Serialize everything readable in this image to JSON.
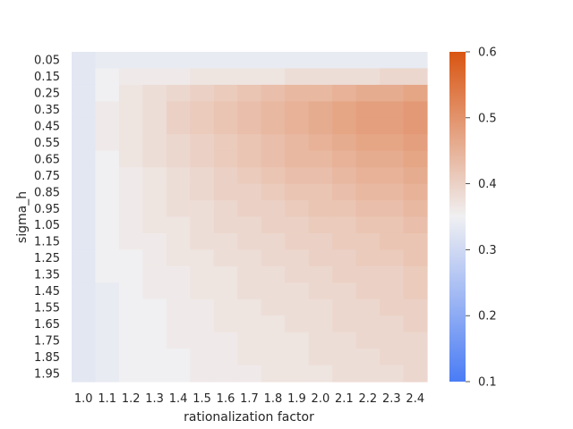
{
  "chart_data": {
    "type": "heatmap",
    "xlabel": "rationalization factor",
    "ylabel": "sigma_h",
    "x": [
      "1.0",
      "1.1",
      "1.2",
      "1.3",
      "1.4",
      "1.5",
      "1.6",
      "1.7",
      "1.8",
      "1.9",
      "2.0",
      "2.1",
      "2.2",
      "2.3",
      "2.4"
    ],
    "y": [
      "0.05",
      "0.15",
      "0.25",
      "0.35",
      "0.45",
      "0.55",
      "0.65",
      "0.75",
      "0.85",
      "0.95",
      "1.05",
      "1.15",
      "1.25",
      "1.35",
      "1.45",
      "1.55",
      "1.65",
      "1.75",
      "1.85",
      "1.95"
    ],
    "colorbar": {
      "min": 0.1,
      "max": 0.6,
      "ticks": [
        "0.1",
        "0.2",
        "0.3",
        "0.4",
        "0.5",
        "0.6"
      ]
    },
    "colors": {
      "low": "#4a7cf5",
      "mid": "#f0f0f2",
      "high": "#d95512"
    },
    "values": [
      [
        0.33,
        0.34,
        0.34,
        0.34,
        0.34,
        0.34,
        0.34,
        0.34,
        0.34,
        0.34,
        0.34,
        0.34,
        0.34,
        0.34,
        0.34
      ],
      [
        0.33,
        0.35,
        0.36,
        0.36,
        0.36,
        0.37,
        0.37,
        0.37,
        0.37,
        0.38,
        0.38,
        0.38,
        0.38,
        0.39,
        0.39
      ],
      [
        0.33,
        0.35,
        0.37,
        0.38,
        0.39,
        0.4,
        0.41,
        0.42,
        0.43,
        0.44,
        0.44,
        0.45,
        0.46,
        0.46,
        0.47
      ],
      [
        0.33,
        0.36,
        0.37,
        0.38,
        0.4,
        0.41,
        0.42,
        0.43,
        0.44,
        0.45,
        0.46,
        0.47,
        0.48,
        0.48,
        0.49
      ],
      [
        0.33,
        0.36,
        0.37,
        0.38,
        0.4,
        0.41,
        0.42,
        0.43,
        0.44,
        0.45,
        0.46,
        0.47,
        0.48,
        0.48,
        0.49
      ],
      [
        0.33,
        0.36,
        0.37,
        0.38,
        0.39,
        0.4,
        0.41,
        0.42,
        0.43,
        0.44,
        0.45,
        0.46,
        0.47,
        0.47,
        0.48
      ],
      [
        0.33,
        0.35,
        0.37,
        0.38,
        0.39,
        0.4,
        0.41,
        0.42,
        0.43,
        0.44,
        0.44,
        0.45,
        0.46,
        0.46,
        0.47
      ],
      [
        0.33,
        0.35,
        0.36,
        0.37,
        0.38,
        0.39,
        0.4,
        0.41,
        0.42,
        0.43,
        0.43,
        0.44,
        0.45,
        0.45,
        0.46
      ],
      [
        0.33,
        0.35,
        0.36,
        0.37,
        0.38,
        0.39,
        0.4,
        0.4,
        0.41,
        0.42,
        0.42,
        0.43,
        0.44,
        0.44,
        0.45
      ],
      [
        0.33,
        0.35,
        0.36,
        0.37,
        0.38,
        0.38,
        0.39,
        0.4,
        0.4,
        0.41,
        0.42,
        0.42,
        0.43,
        0.43,
        0.44
      ],
      [
        0.33,
        0.35,
        0.36,
        0.37,
        0.37,
        0.38,
        0.39,
        0.39,
        0.4,
        0.4,
        0.41,
        0.41,
        0.42,
        0.42,
        0.43
      ],
      [
        0.33,
        0.35,
        0.36,
        0.36,
        0.37,
        0.38,
        0.38,
        0.39,
        0.39,
        0.4,
        0.4,
        0.41,
        0.41,
        0.42,
        0.42
      ],
      [
        0.33,
        0.35,
        0.35,
        0.36,
        0.37,
        0.37,
        0.38,
        0.38,
        0.39,
        0.39,
        0.4,
        0.4,
        0.41,
        0.41,
        0.42
      ],
      [
        0.33,
        0.35,
        0.35,
        0.36,
        0.36,
        0.37,
        0.37,
        0.38,
        0.38,
        0.39,
        0.39,
        0.4,
        0.4,
        0.4,
        0.41
      ],
      [
        0.33,
        0.34,
        0.35,
        0.36,
        0.36,
        0.37,
        0.37,
        0.38,
        0.38,
        0.38,
        0.39,
        0.39,
        0.4,
        0.4,
        0.41
      ],
      [
        0.33,
        0.34,
        0.35,
        0.35,
        0.36,
        0.36,
        0.37,
        0.37,
        0.38,
        0.38,
        0.38,
        0.39,
        0.39,
        0.4,
        0.4
      ],
      [
        0.33,
        0.34,
        0.35,
        0.35,
        0.36,
        0.36,
        0.37,
        0.37,
        0.37,
        0.38,
        0.38,
        0.39,
        0.39,
        0.39,
        0.4
      ],
      [
        0.33,
        0.34,
        0.35,
        0.35,
        0.36,
        0.36,
        0.36,
        0.37,
        0.37,
        0.37,
        0.38,
        0.38,
        0.39,
        0.39,
        0.39
      ],
      [
        0.33,
        0.34,
        0.35,
        0.35,
        0.35,
        0.36,
        0.36,
        0.37,
        0.37,
        0.37,
        0.38,
        0.38,
        0.38,
        0.39,
        0.39
      ],
      [
        0.33,
        0.34,
        0.35,
        0.35,
        0.35,
        0.36,
        0.36,
        0.36,
        0.37,
        0.37,
        0.37,
        0.38,
        0.38,
        0.38,
        0.39
      ]
    ]
  }
}
